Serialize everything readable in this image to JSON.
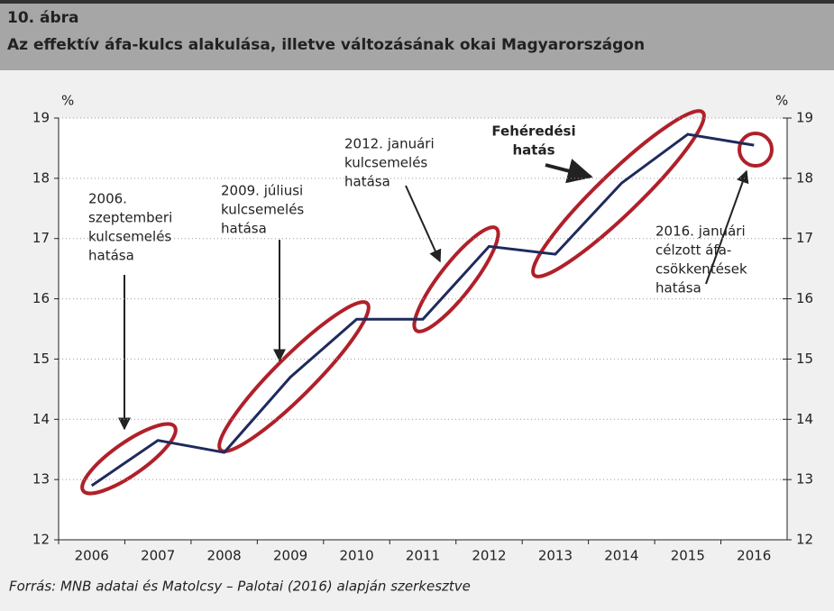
{
  "chart_data": {
    "type": "line",
    "title": "10. ábra",
    "subtitle": "Az effektív áfa-kulcs alakulása, illetve változásának okai Magyarországon",
    "y_label": "%",
    "y2_label": "%",
    "categories": [
      "2006",
      "2007",
      "2008",
      "2009",
      "2010",
      "2011",
      "2012",
      "2013",
      "2014",
      "2015",
      "2016"
    ],
    "series": [
      {
        "name": "Effektív áfa-kulcs",
        "color": "#1f2a5c",
        "values": [
          12.9,
          13.65,
          13.45,
          14.7,
          15.66,
          15.66,
          16.87,
          16.74,
          17.92,
          18.73,
          18.55
        ]
      }
    ],
    "ylim": [
      12,
      19
    ],
    "yticks": [
      12,
      13,
      14,
      15,
      16,
      17,
      18,
      19
    ],
    "y2lim": [
      12,
      19
    ],
    "y2ticks": [
      12,
      13,
      14,
      15,
      16,
      17,
      18,
      19
    ],
    "grid": true,
    "annotations": [
      {
        "lines": [
          "2006.",
          "szeptemberi",
          "kulcsemelés",
          "hatása"
        ]
      },
      {
        "lines": [
          "2009. júliusi",
          "kulcsemelés",
          "hatása"
        ]
      },
      {
        "lines": [
          "2012. januári",
          "kulcsemelés",
          "hatása"
        ]
      },
      {
        "lines": [
          "Fehéredési",
          "hatás"
        ]
      },
      {
        "lines": [
          "2016. januári",
          "célzott áfa-",
          "csökkentések",
          "hatása"
        ]
      }
    ],
    "source": "Forrás: MNB adatai és Matolcsy – Palotai (2016) alapján szerkesztve"
  }
}
